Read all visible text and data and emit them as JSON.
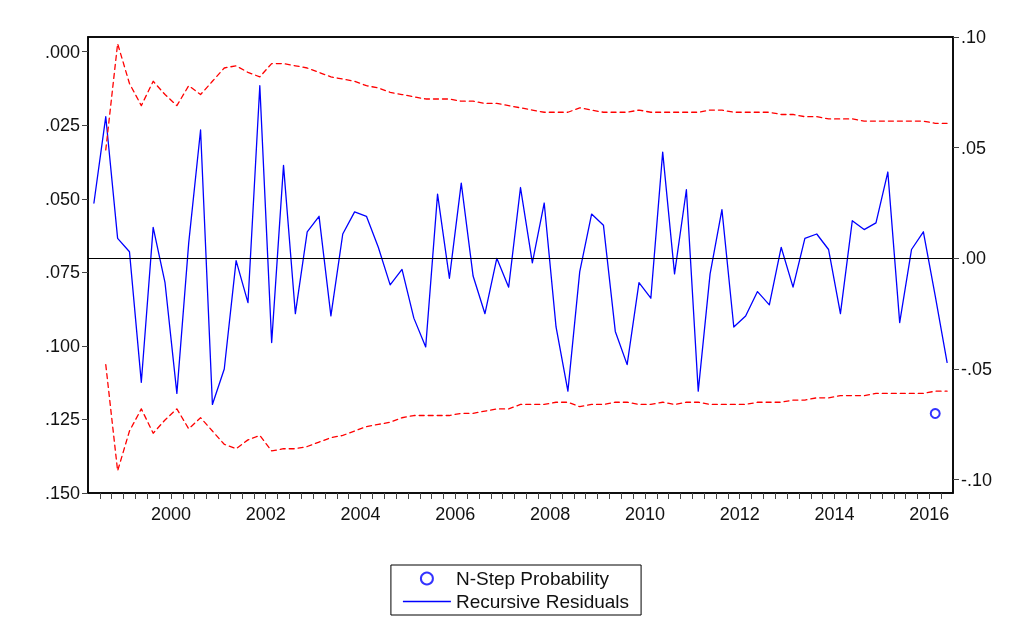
{
  "chart_data": {
    "type": "line",
    "x": [
      1998.875,
      1999.125,
      1999.375,
      1999.625,
      1999.875,
      2000.125,
      2000.375,
      2000.625,
      2000.875,
      2001.125,
      2001.375,
      2001.625,
      2001.875,
      2002.125,
      2002.375,
      2002.625,
      2002.875,
      2003.125,
      2003.375,
      2003.625,
      2003.875,
      2004.125,
      2004.375,
      2004.625,
      2004.875,
      2005.125,
      2005.375,
      2005.625,
      2005.875,
      2006.125,
      2006.375,
      2006.625,
      2006.875,
      2007.125,
      2007.375,
      2007.625,
      2007.875,
      2008.125,
      2008.375,
      2008.625,
      2008.875,
      2009.125,
      2009.375,
      2009.625,
      2009.875,
      2010.125,
      2010.375,
      2010.625,
      2010.875,
      2011.125,
      2011.375,
      2011.625,
      2011.875,
      2012.125,
      2012.375,
      2012.625,
      2012.875,
      2013.125,
      2013.375,
      2013.625,
      2013.875,
      2014.125,
      2014.375,
      2014.625,
      2014.875,
      2015.125,
      2015.375,
      2015.625,
      2015.875,
      2016.125,
      2016.375,
      2016.625,
      2016.875
    ],
    "series": [
      {
        "name": "N-Step Probability",
        "type": "scatter",
        "marker": "circle",
        "axis": "y",
        "color": "#0000ff",
        "x": [
          2016.625
        ],
        "values": [
          0.123
        ]
      },
      {
        "name": "Recursive Residuals",
        "axis": "y2",
        "color": "#0000ff",
        "line_style": "solid",
        "values": [
          0.025,
          0.064,
          0.009,
          0.003,
          -0.056,
          0.014,
          -0.011,
          -0.061,
          0.007,
          0.058,
          -0.066,
          -0.05,
          -0.001,
          -0.02,
          0.078,
          -0.038,
          0.042,
          -0.025,
          0.012,
          0.019,
          -0.026,
          0.011,
          0.021,
          0.019,
          0.005,
          -0.012,
          -0.005,
          -0.027,
          -0.04,
          0.029,
          -0.009,
          0.034,
          -0.008,
          -0.025,
          0.0,
          -0.013,
          0.032,
          -0.002,
          0.025,
          -0.031,
          -0.06,
          -0.006,
          0.02,
          0.015,
          -0.033,
          -0.048,
          -0.011,
          -0.018,
          0.048,
          -0.007,
          0.031,
          -0.06,
          -0.007,
          0.022,
          -0.031,
          -0.026,
          -0.015,
          -0.021,
          0.005,
          -0.013,
          0.009,
          0.011,
          0.004,
          -0.025,
          0.017,
          0.013,
          0.016,
          0.039,
          -0.029,
          0.004,
          0.012,
          -0.017,
          -0.047
        ]
      },
      {
        "axis": "y2",
        "color": "#ff0000",
        "line_style": "dashed",
        "values": [
          null,
          0.049,
          0.097,
          0.079,
          0.069,
          0.08,
          0.074,
          0.069,
          0.078,
          0.074,
          0.08,
          0.086,
          0.087,
          0.084,
          0.082,
          0.088,
          0.088,
          0.087,
          0.086,
          0.084,
          0.082,
          0.081,
          0.08,
          0.078,
          0.077,
          0.075,
          0.074,
          0.073,
          0.072,
          0.072,
          0.072,
          0.071,
          0.071,
          0.07,
          0.07,
          0.069,
          0.068,
          0.067,
          0.066,
          0.066,
          0.066,
          0.068,
          0.067,
          0.066,
          0.066,
          0.066,
          0.067,
          0.066,
          0.066,
          0.066,
          0.066,
          0.066,
          0.067,
          0.067,
          0.066,
          0.066,
          0.066,
          0.066,
          0.065,
          0.065,
          0.064,
          0.064,
          0.063,
          0.063,
          0.063,
          0.062,
          0.062,
          0.062,
          0.062,
          0.062,
          0.062,
          0.061,
          0.061
        ]
      },
      {
        "axis": "y2",
        "color": "#ff0000",
        "line_style": "dashed",
        "values": [
          null,
          -0.048,
          -0.096,
          -0.078,
          -0.068,
          -0.079,
          -0.073,
          -0.068,
          -0.077,
          -0.072,
          -0.078,
          -0.084,
          -0.086,
          -0.082,
          -0.08,
          -0.087,
          -0.086,
          -0.086,
          -0.085,
          -0.083,
          -0.081,
          -0.08,
          -0.078,
          -0.076,
          -0.075,
          -0.074,
          -0.072,
          -0.071,
          -0.071,
          -0.071,
          -0.071,
          -0.07,
          -0.07,
          -0.069,
          -0.068,
          -0.068,
          -0.066,
          -0.066,
          -0.066,
          -0.065,
          -0.065,
          -0.067,
          -0.066,
          -0.066,
          -0.065,
          -0.065,
          -0.066,
          -0.066,
          -0.065,
          -0.066,
          -0.065,
          -0.065,
          -0.066,
          -0.066,
          -0.066,
          -0.066,
          -0.065,
          -0.065,
          -0.065,
          -0.064,
          -0.064,
          -0.063,
          -0.063,
          -0.062,
          -0.062,
          -0.062,
          -0.061,
          -0.061,
          -0.061,
          -0.061,
          -0.061,
          -0.06,
          -0.06
        ]
      }
    ],
    "xlim": [
      1998.75,
      2017
    ],
    "xticks": [
      {
        "value": 1999,
        "label": null
      },
      {
        "value": 1999.25,
        "label": null
      },
      {
        "value": 1999.5,
        "label": null
      },
      {
        "value": 1999.75,
        "label": null
      },
      {
        "value": 2000,
        "label": null
      },
      {
        "value": 2000.25,
        "label": null
      },
      {
        "value": 2000.5,
        "label": "2000"
      },
      {
        "value": 2000.75,
        "label": null
      },
      {
        "value": 2001,
        "label": null
      },
      {
        "value": 2001.25,
        "label": null
      },
      {
        "value": 2001.5,
        "label": null
      },
      {
        "value": 2001.75,
        "label": null
      },
      {
        "value": 2002,
        "label": null
      },
      {
        "value": 2002.25,
        "label": null
      },
      {
        "value": 2002.5,
        "label": "2002"
      },
      {
        "value": 2002.75,
        "label": null
      },
      {
        "value": 2003,
        "label": null
      },
      {
        "value": 2003.25,
        "label": null
      },
      {
        "value": 2003.5,
        "label": null
      },
      {
        "value": 2003.75,
        "label": null
      },
      {
        "value": 2004,
        "label": null
      },
      {
        "value": 2004.25,
        "label": null
      },
      {
        "value": 2004.5,
        "label": "2004"
      },
      {
        "value": 2004.75,
        "label": null
      },
      {
        "value": 2005,
        "label": null
      },
      {
        "value": 2005.25,
        "label": null
      },
      {
        "value": 2005.5,
        "label": null
      },
      {
        "value": 2005.75,
        "label": null
      },
      {
        "value": 2006,
        "label": null
      },
      {
        "value": 2006.25,
        "label": null
      },
      {
        "value": 2006.5,
        "label": "2006"
      },
      {
        "value": 2006.75,
        "label": null
      },
      {
        "value": 2007,
        "label": null
      },
      {
        "value": 2007.25,
        "label": null
      },
      {
        "value": 2007.5,
        "label": null
      },
      {
        "value": 2007.75,
        "label": null
      },
      {
        "value": 2008,
        "label": null
      },
      {
        "value": 2008.25,
        "label": null
      },
      {
        "value": 2008.5,
        "label": "2008"
      },
      {
        "value": 2008.75,
        "label": null
      },
      {
        "value": 2009,
        "label": null
      },
      {
        "value": 2009.25,
        "label": null
      },
      {
        "value": 2009.5,
        "label": null
      },
      {
        "value": 2009.75,
        "label": null
      },
      {
        "value": 2010,
        "label": null
      },
      {
        "value": 2010.25,
        "label": null
      },
      {
        "value": 2010.5,
        "label": "2010"
      },
      {
        "value": 2010.75,
        "label": null
      },
      {
        "value": 2011,
        "label": null
      },
      {
        "value": 2011.25,
        "label": null
      },
      {
        "value": 2011.5,
        "label": null
      },
      {
        "value": 2011.75,
        "label": null
      },
      {
        "value": 2012,
        "label": null
      },
      {
        "value": 2012.25,
        "label": null
      },
      {
        "value": 2012.5,
        "label": "2012"
      },
      {
        "value": 2012.75,
        "label": null
      },
      {
        "value": 2013,
        "label": null
      },
      {
        "value": 2013.25,
        "label": null
      },
      {
        "value": 2013.5,
        "label": null
      },
      {
        "value": 2013.75,
        "label": null
      },
      {
        "value": 2014,
        "label": null
      },
      {
        "value": 2014.25,
        "label": null
      },
      {
        "value": 2014.5,
        "label": "2014"
      },
      {
        "value": 2014.75,
        "label": null
      },
      {
        "value": 2015,
        "label": null
      },
      {
        "value": 2015.25,
        "label": null
      },
      {
        "value": 2015.5,
        "label": null
      },
      {
        "value": 2015.75,
        "label": null
      },
      {
        "value": 2016,
        "label": null
      },
      {
        "value": 2016.25,
        "label": null
      },
      {
        "value": 2016.5,
        "label": "2016"
      },
      {
        "value": 2016.75,
        "label": null
      }
    ],
    "ylim": [
      0.15,
      -0.005
    ],
    "yticks": [
      {
        "value": 0,
        "label": ".000"
      },
      {
        "value": 0.025,
        "label": ".025"
      },
      {
        "value": 0.05,
        "label": ".050"
      },
      {
        "value": 0.075,
        "label": ".075"
      },
      {
        "value": 0.1,
        "label": ".100"
      },
      {
        "value": 0.125,
        "label": ".125"
      },
      {
        "value": 0.15,
        "label": ".150"
      }
    ],
    "y2lim": [
      -0.106,
      0.1
    ],
    "y2ticks": [
      {
        "value": 0.1,
        "label": ".10"
      },
      {
        "value": 0.05,
        "label": ".05"
      },
      {
        "value": 0,
        "label": ".00"
      },
      {
        "value": -0.05,
        "label": "-.05"
      },
      {
        "value": -0.1,
        "label": "-.10"
      }
    ],
    "ref_lines": [
      {
        "axis": "y2",
        "value": 0,
        "color": "#000000"
      }
    ],
    "grid": false,
    "legend": "bottom"
  }
}
